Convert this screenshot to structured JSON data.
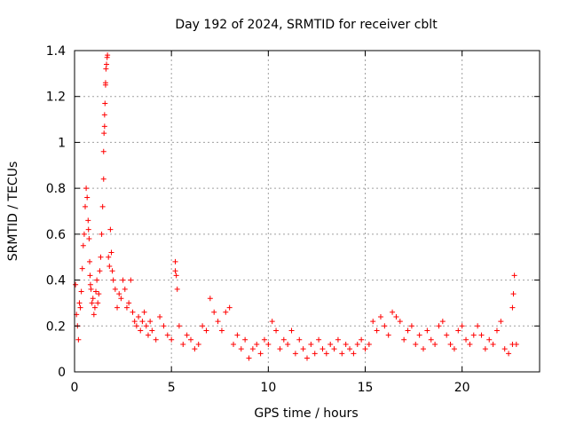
{
  "chart_data": {
    "type": "scatter",
    "title": "Day 192 of 2024, SRMTID for receiver cblt",
    "xlabel": "GPS time / hours",
    "ylabel": "SRMTID / TECUs",
    "xlim": [
      0,
      24
    ],
    "ylim": [
      0,
      1.4
    ],
    "xticks": [
      0,
      5,
      10,
      15,
      20
    ],
    "xtick_labels": [
      "0",
      "5",
      "10",
      "15",
      "20"
    ],
    "yticks": [
      0,
      0.2,
      0.4,
      0.6,
      0.8,
      1,
      1.2,
      1.4
    ],
    "ytick_labels": [
      "0",
      "0.2",
      "0.4",
      "0.6",
      "0.8",
      "1",
      "1.2",
      "1.4"
    ],
    "grid": true,
    "marker": "+",
    "color": "#ff0000",
    "series": [
      {
        "name": "SRMTID",
        "x": [
          0.05,
          0.1,
          0.15,
          0.2,
          0.25,
          0.3,
          0.35,
          0.4,
          0.45,
          0.5,
          0.55,
          0.6,
          0.65,
          0.7,
          0.72,
          0.75,
          0.78,
          0.8,
          0.82,
          0.85,
          0.9,
          0.95,
          1.0,
          1.05,
          1.1,
          1.15,
          1.2,
          1.25,
          1.3,
          1.35,
          1.4,
          1.45,
          1.5,
          1.5,
          1.52,
          1.55,
          1.55,
          1.57,
          1.6,
          1.6,
          1.62,
          1.65,
          1.68,
          1.7,
          1.75,
          1.8,
          1.85,
          1.9,
          1.95,
          2.0,
          2.1,
          2.2,
          2.3,
          2.4,
          2.5,
          2.6,
          2.7,
          2.8,
          2.9,
          3.0,
          3.1,
          3.2,
          3.3,
          3.4,
          3.5,
          3.6,
          3.7,
          3.8,
          3.9,
          4.0,
          4.2,
          4.4,
          4.6,
          4.8,
          5.0,
          5.2,
          5.2,
          5.25,
          5.3,
          5.4,
          5.6,
          5.8,
          6.0,
          6.2,
          6.4,
          6.6,
          6.8,
          7.0,
          7.2,
          7.4,
          7.6,
          7.8,
          8.0,
          8.2,
          8.4,
          8.6,
          8.8,
          9.0,
          9.2,
          9.4,
          9.6,
          9.8,
          10.0,
          10.2,
          10.4,
          10.6,
          10.8,
          11.0,
          11.2,
          11.4,
          11.6,
          11.8,
          12.0,
          12.2,
          12.4,
          12.6,
          12.8,
          13.0,
          13.2,
          13.4,
          13.6,
          13.8,
          14.0,
          14.2,
          14.4,
          14.6,
          14.8,
          15.0,
          15.2,
          15.4,
          15.6,
          15.8,
          16.0,
          16.2,
          16.4,
          16.6,
          16.8,
          17.0,
          17.2,
          17.4,
          17.6,
          17.8,
          18.0,
          18.2,
          18.4,
          18.6,
          18.8,
          19.0,
          19.2,
          19.4,
          19.6,
          19.8,
          20.0,
          20.2,
          20.4,
          20.6,
          20.8,
          21.0,
          21.2,
          21.4,
          21.6,
          21.8,
          22.0,
          22.2,
          22.4,
          22.6,
          22.6,
          22.65,
          22.7,
          22.8
        ],
        "y": [
          0.38,
          0.25,
          0.2,
          0.14,
          0.3,
          0.28,
          0.35,
          0.45,
          0.55,
          0.6,
          0.72,
          0.8,
          0.76,
          0.66,
          0.62,
          0.58,
          0.48,
          0.42,
          0.38,
          0.36,
          0.3,
          0.32,
          0.25,
          0.28,
          0.35,
          0.4,
          0.3,
          0.34,
          0.44,
          0.5,
          0.6,
          0.72,
          0.84,
          0.96,
          1.04,
          1.07,
          1.12,
          1.17,
          1.25,
          1.26,
          1.32,
          1.34,
          1.37,
          1.38,
          0.5,
          0.46,
          0.62,
          0.52,
          0.44,
          0.4,
          0.36,
          0.28,
          0.34,
          0.32,
          0.4,
          0.36,
          0.28,
          0.3,
          0.4,
          0.26,
          0.22,
          0.2,
          0.24,
          0.18,
          0.22,
          0.26,
          0.2,
          0.16,
          0.22,
          0.18,
          0.14,
          0.24,
          0.2,
          0.16,
          0.14,
          0.48,
          0.44,
          0.42,
          0.36,
          0.2,
          0.12,
          0.16,
          0.14,
          0.1,
          0.12,
          0.2,
          0.18,
          0.32,
          0.26,
          0.22,
          0.18,
          0.26,
          0.28,
          0.12,
          0.16,
          0.1,
          0.14,
          0.06,
          0.1,
          0.12,
          0.08,
          0.14,
          0.12,
          0.22,
          0.18,
          0.1,
          0.14,
          0.12,
          0.18,
          0.08,
          0.14,
          0.1,
          0.06,
          0.12,
          0.08,
          0.14,
          0.1,
          0.08,
          0.12,
          0.1,
          0.14,
          0.08,
          0.12,
          0.1,
          0.08,
          0.12,
          0.14,
          0.1,
          0.12,
          0.22,
          0.18,
          0.24,
          0.2,
          0.16,
          0.26,
          0.24,
          0.22,
          0.14,
          0.18,
          0.2,
          0.12,
          0.16,
          0.1,
          0.18,
          0.14,
          0.12,
          0.2,
          0.22,
          0.16,
          0.12,
          0.1,
          0.18,
          0.2,
          0.14,
          0.12,
          0.16,
          0.2,
          0.16,
          0.1,
          0.14,
          0.12,
          0.18,
          0.22,
          0.1,
          0.08,
          0.12,
          0.28,
          0.34,
          0.42,
          0.12
        ]
      }
    ]
  }
}
